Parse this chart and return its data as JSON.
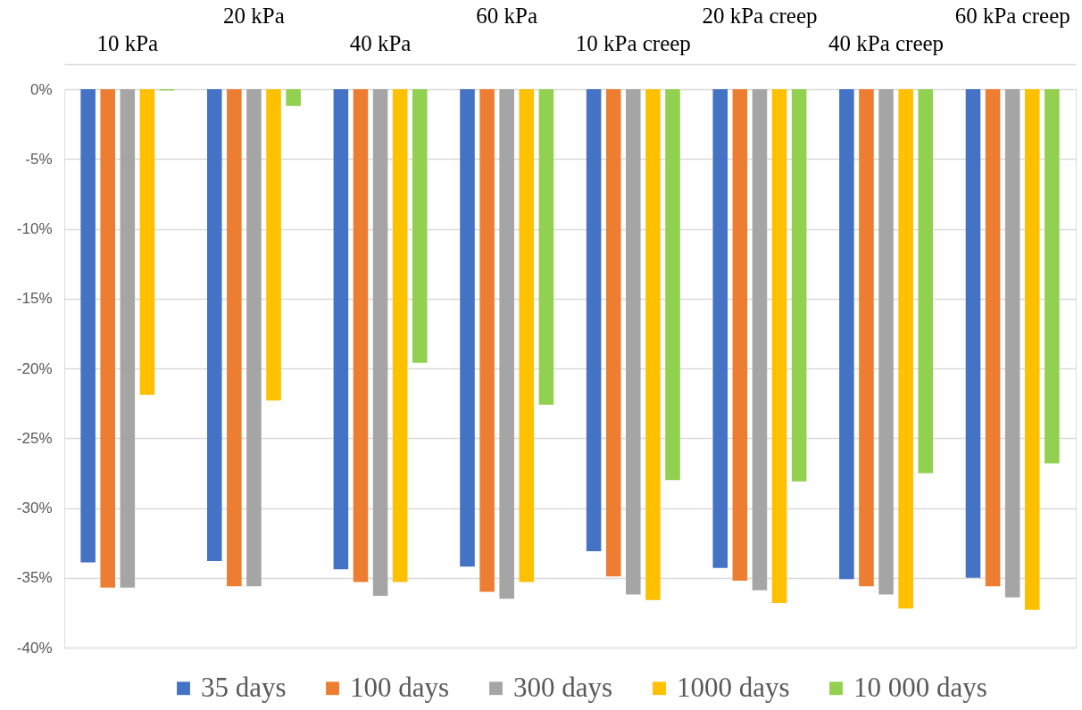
{
  "chart_data": {
    "type": "bar",
    "categories": [
      "10 kPa",
      "20 kPa",
      "40 kPa",
      "60 kPa",
      "10 kPa creep",
      "20 kPa creep",
      "40 kPa creep",
      "60 kPa creep"
    ],
    "series": [
      {
        "name": "35 days",
        "color": "#4472c4",
        "values": [
          -33.9,
          -33.8,
          -34.4,
          -34.2,
          -33.1,
          -34.3,
          -35.1,
          -35.0
        ]
      },
      {
        "name": "100 days",
        "color": "#ed7d31",
        "values": [
          -35.7,
          -35.6,
          -35.3,
          -36.0,
          -34.9,
          -35.2,
          -35.6,
          -35.6
        ]
      },
      {
        "name": "300 days",
        "color": "#a5a5a5",
        "values": [
          -35.7,
          -35.6,
          -36.3,
          -36.5,
          -36.2,
          -35.9,
          -36.2,
          -36.4
        ]
      },
      {
        "name": "1000 days",
        "color": "#ffc000",
        "values": [
          -21.9,
          -22.3,
          -35.3,
          -35.3,
          -36.6,
          -36.8,
          -37.2,
          -37.3
        ]
      },
      {
        "name": "10 000 days",
        "color": "#92d050",
        "values": [
          -0.1,
          -1.2,
          -19.6,
          -22.6,
          -28.0,
          -28.1,
          -27.5,
          -26.8
        ]
      }
    ],
    "ylim": [
      -40,
      0
    ],
    "yticks": [
      {
        "value": 0,
        "label": "0%"
      },
      {
        "value": -5,
        "label": "-5%"
      },
      {
        "value": -10,
        "label": "-10%"
      },
      {
        "value": -15,
        "label": "-15%"
      },
      {
        "value": -20,
        "label": "-20%"
      },
      {
        "value": -25,
        "label": "-25%"
      },
      {
        "value": -30,
        "label": "-30%"
      },
      {
        "value": -35,
        "label": "-35%"
      },
      {
        "value": -40,
        "label": "-40%"
      }
    ],
    "grid": "y",
    "legend": "bottom"
  }
}
